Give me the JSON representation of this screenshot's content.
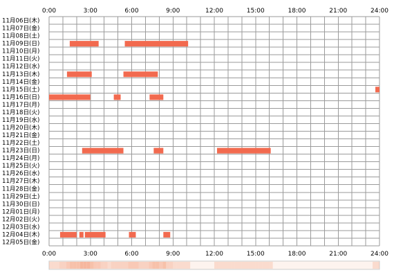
{
  "chart_data": {
    "type": "heatmap",
    "title": "",
    "xlabel": "",
    "ylabel": "",
    "x_ticks": [
      "0:00",
      "3:00",
      "6:00",
      "9:00",
      "12:00",
      "15:00",
      "18:00",
      "21:00",
      "24:00"
    ],
    "xlim_hours": [
      0,
      24
    ],
    "rows": [
      {
        "label": "11月06日(木)",
        "segments": []
      },
      {
        "label": "11月07日(金)",
        "segments": []
      },
      {
        "label": "11月08日(土)",
        "segments": []
      },
      {
        "label": "11月09日(日)",
        "segments": [
          [
            1.5,
            3.6
          ],
          [
            5.5,
            10.1
          ]
        ]
      },
      {
        "label": "11月10日(月)",
        "segments": []
      },
      {
        "label": "11月11日(火)",
        "segments": []
      },
      {
        "label": "11月12日(水)",
        "segments": []
      },
      {
        "label": "11月13日(木)",
        "segments": [
          [
            1.3,
            3.1
          ],
          [
            5.4,
            7.9
          ]
        ]
      },
      {
        "label": "11月14日(金)",
        "segments": []
      },
      {
        "label": "11月15日(土)",
        "segments": [
          [
            23.7,
            24.0
          ]
        ]
      },
      {
        "label": "11月16日(日)",
        "segments": [
          [
            0.0,
            3.0
          ],
          [
            4.7,
            5.2
          ],
          [
            7.3,
            8.3
          ]
        ]
      },
      {
        "label": "11月17日(月)",
        "segments": []
      },
      {
        "label": "11月18日(火)",
        "segments": []
      },
      {
        "label": "11月19日(水)",
        "segments": []
      },
      {
        "label": "11月20日(木)",
        "segments": []
      },
      {
        "label": "11月21日(金)",
        "segments": []
      },
      {
        "label": "11月22日(土)",
        "segments": []
      },
      {
        "label": "11月23日(日)",
        "segments": [
          [
            2.4,
            5.4
          ],
          [
            7.6,
            8.3
          ],
          [
            12.2,
            16.1
          ]
        ]
      },
      {
        "label": "11月24日(月)",
        "segments": []
      },
      {
        "label": "11月25日(火)",
        "segments": []
      },
      {
        "label": "11月26日(水)",
        "segments": []
      },
      {
        "label": "11月27日(木)",
        "segments": []
      },
      {
        "label": "11月28日(金)",
        "segments": []
      },
      {
        "label": "11月29日(土)",
        "segments": []
      },
      {
        "label": "11月30日(日)",
        "segments": []
      },
      {
        "label": "12月01日(月)",
        "segments": []
      },
      {
        "label": "12月02日(火)",
        "segments": []
      },
      {
        "label": "12月03日(水)",
        "segments": []
      },
      {
        "label": "12月04日(木)",
        "segments": [
          [
            0.8,
            2.0
          ],
          [
            2.2,
            2.5
          ],
          [
            2.6,
            4.1
          ],
          [
            5.8,
            6.3
          ],
          [
            8.3,
            8.8
          ]
        ]
      },
      {
        "label": "12月05日(金)",
        "segments": []
      }
    ],
    "bar_color": "#f26a4f",
    "grid_color": "#9a9a9a",
    "summary_strip": {
      "base_color": "#fdf3ee",
      "shade_color": "#f6b79e",
      "border_color": "#cccccc"
    }
  }
}
